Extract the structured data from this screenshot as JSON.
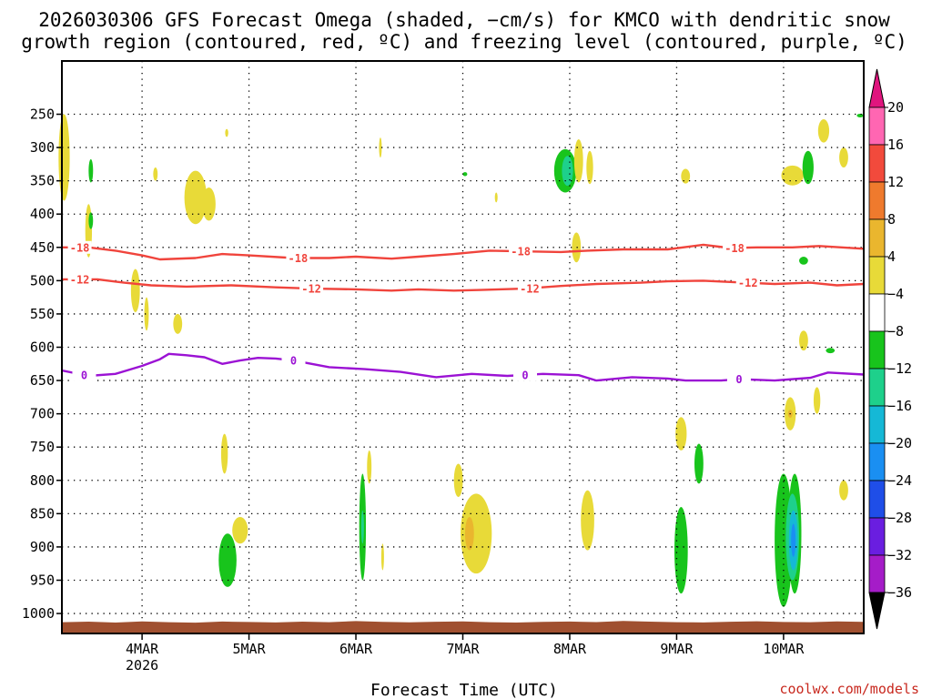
{
  "chart_data": {
    "type": "time-height contour",
    "title_line1": "2026030306 GFS Forecast Omega (shaded, −cm/s) for KMCO with dendritic snow",
    "title_line2": "growth region (contoured, red, ºC) and freezing level (contoured, purple, ºC)",
    "xlabel": "Forecast Time (UTC)",
    "credit": "coolwx.com/models",
    "x_unit": "hours since 2026-03-03 06Z",
    "xlim": [
      0,
      180
    ],
    "x_ticks": [
      {
        "hour": 18,
        "label": "4MAR",
        "sub": "2026"
      },
      {
        "hour": 42,
        "label": "5MAR",
        "sub": ""
      },
      {
        "hour": 66,
        "label": "6MAR",
        "sub": ""
      },
      {
        "hour": 90,
        "label": "7MAR",
        "sub": ""
      },
      {
        "hour": 114,
        "label": "8MAR",
        "sub": ""
      },
      {
        "hour": 138,
        "label": "9MAR",
        "sub": ""
      },
      {
        "hour": 162,
        "label": "10MAR",
        "sub": ""
      }
    ],
    "y_unit": "hPa",
    "ylim": [
      1030,
      170
    ],
    "y_ticks": [
      "250",
      "300",
      "350",
      "400",
      "450",
      "500",
      "550",
      "600",
      "650",
      "700",
      "750",
      "800",
      "850",
      "900",
      "950",
      "1000"
    ],
    "colorbar": {
      "labels": [
        "20",
        "16",
        "12",
        "8",
        "4",
        "−4",
        "−8",
        "−12",
        "−16",
        "−20",
        "−24",
        "−28",
        "−32",
        "−36"
      ],
      "colors": [
        "#ff66b2",
        "#f24a3c",
        "#ef7a2d",
        "#eab62e",
        "#e8da38",
        "#ffffff",
        "#18c41c",
        "#1ed08b",
        "#15b8d6",
        "#1a8ff2",
        "#1f4ee8",
        "#6a1ee0",
        "#a51cc8",
        "#a8a8a8"
      ],
      "top_arrow_color": "#e0157e",
      "bottom_arrow_color": "#000000"
    },
    "contour_colors": {
      "dendritic": "#f0443c",
      "freezing": "#9b12d4"
    },
    "contours": [
      {
        "label": "-18",
        "color_key": "dendritic",
        "points": [
          [
            0,
            450
          ],
          [
            6,
            450
          ],
          [
            12,
            455
          ],
          [
            18,
            462
          ],
          [
            22,
            468
          ],
          [
            30,
            466
          ],
          [
            36,
            460
          ],
          [
            42,
            462
          ],
          [
            52,
            466
          ],
          [
            60,
            466
          ],
          [
            66,
            464
          ],
          [
            74,
            467
          ],
          [
            80,
            464
          ],
          [
            88,
            460
          ],
          [
            96,
            455
          ],
          [
            104,
            456
          ],
          [
            112,
            457
          ],
          [
            118,
            455
          ],
          [
            126,
            453
          ],
          [
            136,
            453
          ],
          [
            144,
            446
          ],
          [
            150,
            451
          ],
          [
            156,
            450
          ],
          [
            164,
            450
          ],
          [
            170,
            448
          ],
          [
            180,
            452
          ]
        ],
        "label_hours": [
          4,
          53,
          103,
          151
        ]
      },
      {
        "label": "-12",
        "color_key": "dendritic",
        "points": [
          [
            0,
            498
          ],
          [
            8,
            498
          ],
          [
            14,
            503
          ],
          [
            20,
            507
          ],
          [
            28,
            509
          ],
          [
            38,
            507
          ],
          [
            48,
            510
          ],
          [
            56,
            512
          ],
          [
            66,
            513
          ],
          [
            74,
            515
          ],
          [
            80,
            513
          ],
          [
            88,
            515
          ],
          [
            94,
            514
          ],
          [
            104,
            512
          ],
          [
            112,
            508
          ],
          [
            120,
            505
          ],
          [
            130,
            503
          ],
          [
            136,
            501
          ],
          [
            144,
            500
          ],
          [
            150,
            502
          ],
          [
            160,
            505
          ],
          [
            168,
            503
          ],
          [
            174,
            507
          ],
          [
            180,
            505
          ]
        ],
        "label_hours": [
          4,
          56,
          105,
          154
        ]
      },
      {
        "label": "0",
        "color_key": "freezing",
        "points": [
          [
            0,
            635
          ],
          [
            6,
            643
          ],
          [
            12,
            640
          ],
          [
            18,
            628
          ],
          [
            22,
            618
          ],
          [
            24,
            610
          ],
          [
            28,
            612
          ],
          [
            32,
            615
          ],
          [
            36,
            625
          ],
          [
            40,
            620
          ],
          [
            44,
            616
          ],
          [
            48,
            617
          ],
          [
            52,
            620
          ],
          [
            60,
            630
          ],
          [
            68,
            633
          ],
          [
            76,
            637
          ],
          [
            84,
            645
          ],
          [
            92,
            640
          ],
          [
            100,
            643
          ],
          [
            108,
            640
          ],
          [
            116,
            642
          ],
          [
            120,
            650
          ],
          [
            128,
            645
          ],
          [
            136,
            647
          ],
          [
            140,
            650
          ],
          [
            148,
            650
          ],
          [
            152,
            648
          ],
          [
            160,
            650
          ],
          [
            168,
            646
          ],
          [
            172,
            638
          ],
          [
            180,
            641
          ]
        ],
        "label_hours": [
          5,
          52,
          104,
          152
        ]
      }
    ],
    "omega_patches": [
      {
        "hour": 0.5,
        "p": 315,
        "w": 2.5,
        "h": 130,
        "level": "4"
      },
      {
        "hour": 6,
        "p": 425,
        "w": 1.5,
        "h": 80,
        "level": "4"
      },
      {
        "hour": 6.5,
        "p": 335,
        "w": 1,
        "h": 35,
        "level": "-4"
      },
      {
        "hour": 6.5,
        "p": 410,
        "w": 1,
        "h": 25,
        "level": "-4"
      },
      {
        "hour": 21,
        "p": 340,
        "w": 1,
        "h": 20,
        "level": "4"
      },
      {
        "hour": 30,
        "p": 375,
        "w": 5,
        "h": 80,
        "level": "4"
      },
      {
        "hour": 33,
        "p": 385,
        "w": 3,
        "h": 50,
        "level": "4"
      },
      {
        "hour": 37,
        "p": 278,
        "w": 0.7,
        "h": 12,
        "level": "4"
      },
      {
        "hour": 16.5,
        "p": 515,
        "w": 2,
        "h": 65,
        "level": "4"
      },
      {
        "hour": 19,
        "p": 550,
        "w": 1,
        "h": 50,
        "level": "4"
      },
      {
        "hour": 26,
        "p": 565,
        "w": 2,
        "h": 30,
        "level": "4"
      },
      {
        "hour": 71.5,
        "p": 300,
        "w": 0.6,
        "h": 30,
        "level": "4"
      },
      {
        "hour": 97.5,
        "p": 375,
        "w": 0.6,
        "h": 15,
        "level": "4"
      },
      {
        "hour": 90.5,
        "p": 340,
        "w": 1,
        "h": 6,
        "level": "-4"
      },
      {
        "hour": 113,
        "p": 335,
        "w": 5,
        "h": 65,
        "level": "-4"
      },
      {
        "hour": 113.5,
        "p": 335,
        "w": 2.5,
        "h": 45,
        "level": "-8"
      },
      {
        "hour": 116,
        "p": 320,
        "w": 2,
        "h": 65,
        "level": "4"
      },
      {
        "hour": 118.5,
        "p": 330,
        "w": 1.5,
        "h": 50,
        "level": "4"
      },
      {
        "hour": 115.5,
        "p": 450,
        "w": 2,
        "h": 45,
        "level": "4"
      },
      {
        "hour": 140,
        "p": 343,
        "w": 2,
        "h": 22,
        "level": "4"
      },
      {
        "hour": 164,
        "p": 342,
        "w": 5,
        "h": 30,
        "level": "4"
      },
      {
        "hour": 167.5,
        "p": 330,
        "w": 2.5,
        "h": 50,
        "level": "-4"
      },
      {
        "hour": 171,
        "p": 275,
        "w": 2.5,
        "h": 35,
        "level": "4"
      },
      {
        "hour": 175.5,
        "p": 315,
        "w": 2,
        "h": 30,
        "level": "4"
      },
      {
        "hour": 179.2,
        "p": 252,
        "w": 1.5,
        "h": 4,
        "level": "-4"
      },
      {
        "hour": 166.5,
        "p": 470,
        "w": 2,
        "h": 12,
        "level": "-4"
      },
      {
        "hour": 166.5,
        "p": 590,
        "w": 2,
        "h": 30,
        "level": "4"
      },
      {
        "hour": 172.5,
        "p": 605,
        "w": 2,
        "h": 8,
        "level": "-4"
      },
      {
        "hour": 169.5,
        "p": 680,
        "w": 1.5,
        "h": 40,
        "level": "4"
      },
      {
        "hour": 163.5,
        "p": 700,
        "w": 2.5,
        "h": 50,
        "level": "4"
      },
      {
        "hour": 163.5,
        "p": 700,
        "w": 1,
        "h": 12,
        "level": "8"
      },
      {
        "hour": 36.5,
        "p": 760,
        "w": 1.5,
        "h": 60,
        "level": "4"
      },
      {
        "hour": 40,
        "p": 875,
        "w": 3.5,
        "h": 40,
        "level": "4"
      },
      {
        "hour": 37.2,
        "p": 920,
        "w": 4,
        "h": 80,
        "level": "-4"
      },
      {
        "hour": 67.5,
        "p": 870,
        "w": 1.5,
        "h": 160,
        "level": "-4"
      },
      {
        "hour": 67.5,
        "p": 870,
        "w": 0.6,
        "h": 50,
        "level": "-8"
      },
      {
        "hour": 69,
        "p": 780,
        "w": 1,
        "h": 50,
        "level": "4"
      },
      {
        "hour": 72,
        "p": 915,
        "w": 0.6,
        "h": 40,
        "level": "4"
      },
      {
        "hour": 93,
        "p": 880,
        "w": 7,
        "h": 120,
        "level": "4"
      },
      {
        "hour": 91.5,
        "p": 880,
        "w": 2,
        "h": 50,
        "level": "8"
      },
      {
        "hour": 89,
        "p": 800,
        "w": 2,
        "h": 50,
        "level": "4"
      },
      {
        "hour": 118,
        "p": 860,
        "w": 3,
        "h": 90,
        "level": "4"
      },
      {
        "hour": 139,
        "p": 730,
        "w": 2.5,
        "h": 50,
        "level": "4"
      },
      {
        "hour": 139,
        "p": 905,
        "w": 3,
        "h": 130,
        "level": "-4"
      },
      {
        "hour": 143,
        "p": 775,
        "w": 2,
        "h": 60,
        "level": "-4"
      },
      {
        "hour": 162,
        "p": 890,
        "w": 4,
        "h": 200,
        "level": "-4"
      },
      {
        "hour": 164.5,
        "p": 880,
        "w": 3,
        "h": 180,
        "level": "-4"
      },
      {
        "hour": 164,
        "p": 885,
        "w": 3,
        "h": 130,
        "level": "-8"
      },
      {
        "hour": 164.2,
        "p": 890,
        "w": 2,
        "h": 90,
        "level": "-12"
      },
      {
        "hour": 164.2,
        "p": 890,
        "w": 1,
        "h": 50,
        "level": "-16"
      },
      {
        "hour": 175.5,
        "p": 815,
        "w": 2,
        "h": 30,
        "level": "4"
      }
    ],
    "terrain": {
      "top_p": 1013,
      "color": "#a05030"
    }
  }
}
